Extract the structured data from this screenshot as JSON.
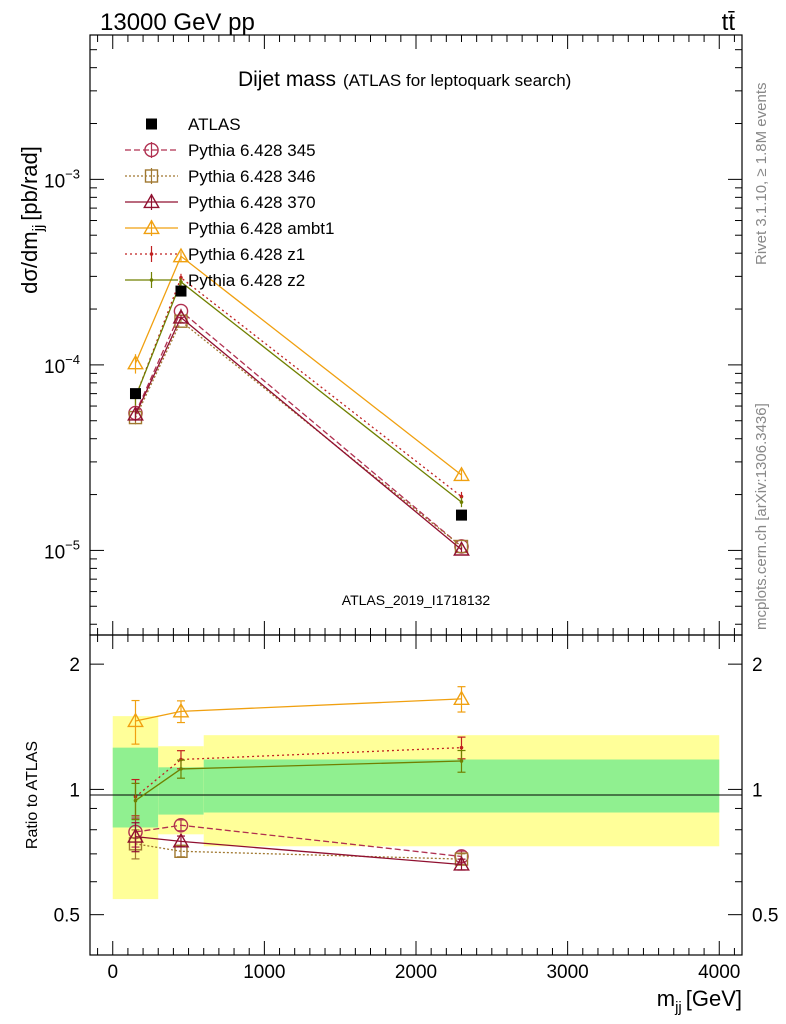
{
  "header": {
    "left": "13000 GeV pp",
    "right": "tt̄"
  },
  "watermark": "ATLAS_2019_I1718132",
  "side_top": "Rivet 3.1.10, ≥ 1.8M events",
  "side_bottom": "mcplots.cern.ch [arXiv:1306.3436]",
  "colors": {
    "data": "#000000",
    "p345": "#b03050",
    "p346": "#a07830",
    "p370": "#901030",
    "ambt1": "#f0a010",
    "z1": "#c02020",
    "z2": "#708000",
    "band_inner": "#90f090",
    "band_outer": "#ffff99",
    "watermark": "#999999"
  },
  "chart_data": {
    "type": "line",
    "title": "Dijet mass",
    "subtitle": "(ATLAS for leptoquark search)",
    "xlabel": "m",
    "xlabel_sub": "jj",
    "xlabel_unit": "[GeV]",
    "ylabel_main": "dσ/dm",
    "ylabel_sub": "jj",
    "ylabel_unit": "[pb/rad]",
    "ratio_ylabel": "Ratio to ATLAS",
    "xlim": [
      -150,
      4150
    ],
    "ylim": [
      3.5e-06,
      0.006
    ],
    "yscale": "log",
    "ratio_ylim": [
      0.4,
      2.35
    ],
    "ratio_yscale": "log",
    "x_ticks": [
      0,
      1000,
      2000,
      3000,
      4000
    ],
    "x_tick_labels": [
      "0",
      "1000",
      "2000",
      "3000",
      "4000"
    ],
    "y_major_ticks": [
      {
        "value": 0.001,
        "base": "10",
        "exp": "−3"
      },
      {
        "value": 0.0001,
        "base": "10",
        "exp": "−4"
      },
      {
        "value": 1e-05,
        "base": "10",
        "exp": "−5"
      }
    ],
    "ratio_ticks": [
      {
        "value": 0.5,
        "label": "0.5"
      },
      {
        "value": 1,
        "label": "1"
      },
      {
        "value": 2,
        "label": "2"
      }
    ],
    "legend_position": "top-left",
    "x": [
      150,
      450,
      2300
    ],
    "bins": [
      [
        0,
        300
      ],
      [
        300,
        600
      ],
      [
        600,
        4000
      ]
    ],
    "data": {
      "name": "ATLAS",
      "values": [
        7e-05,
        0.00025,
        1.55e-05
      ],
      "band_inner": [
        [
          0.81,
          1.26
        ],
        [
          0.87,
          1.13
        ],
        [
          0.88,
          1.18
        ]
      ],
      "band_outer": [
        [
          0.545,
          1.5
        ],
        [
          0.78,
          1.27
        ],
        [
          0.73,
          1.35
        ]
      ]
    },
    "series": [
      {
        "name": "Pythia 6.428 345",
        "key": "p345",
        "marker": "circle",
        "dash": "6,3",
        "values": [
          5.5e-05,
          0.000195,
          1.05e-05
        ],
        "ratio": [
          0.79,
          0.82,
          0.69
        ],
        "err": [
          0.08,
          0.03,
          0.03
        ]
      },
      {
        "name": "Pythia 6.428 346",
        "key": "p346",
        "marker": "square",
        "dash": "2,2",
        "values": [
          5.2e-05,
          0.000172,
          1.05e-05
        ],
        "ratio": [
          0.74,
          0.71,
          0.68
        ],
        "err": [
          0.08,
          0.03,
          0.03
        ]
      },
      {
        "name": "Pythia 6.428 370",
        "key": "p370",
        "marker": "triangle",
        "dash": "",
        "values": [
          5.4e-05,
          0.00018,
          1.01e-05
        ],
        "ratio": [
          0.77,
          0.75,
          0.66
        ],
        "err": [
          0.08,
          0.03,
          0.03
        ]
      },
      {
        "name": "Pythia 6.428 ambt1",
        "key": "ambt1",
        "marker": "triangle",
        "dash": "",
        "values": [
          0.000102,
          0.000385,
          2.55e-05
        ],
        "ratio": [
          1.46,
          1.54,
          1.65
        ],
        "err": [
          0.12,
          0.06,
          0.07
        ]
      },
      {
        "name": "Pythia 6.428 z1",
        "key": "z1",
        "marker": "dot",
        "dash": "2,3",
        "values": [
          6.7e-05,
          0.000295,
          1.95e-05
        ],
        "ratio": [
          0.96,
          1.18,
          1.26
        ],
        "err": [
          0.1,
          0.05,
          0.06
        ]
      },
      {
        "name": "Pythia 6.428 z2",
        "key": "z2",
        "marker": "dot",
        "dash": "",
        "values": [
          6.7e-05,
          0.00028,
          1.82e-05
        ],
        "ratio": [
          0.94,
          1.12,
          1.17
        ],
        "err": [
          0.1,
          0.05,
          0.06
        ]
      }
    ]
  }
}
